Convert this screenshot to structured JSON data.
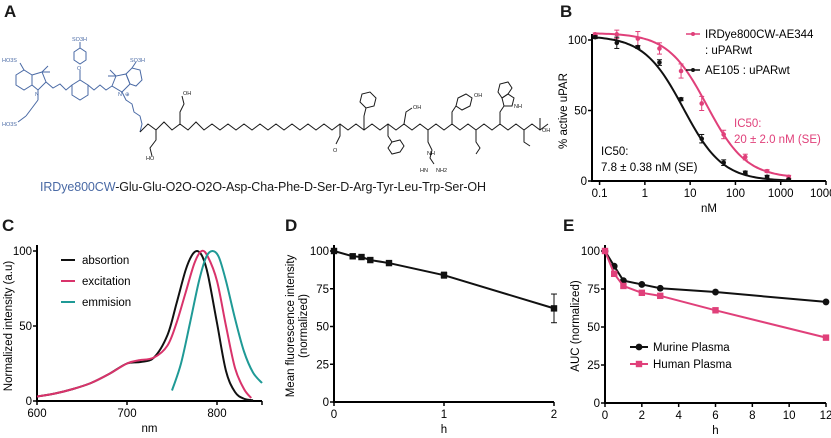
{
  "panels": {
    "A": {
      "letter": "A",
      "sequence_dye": "IRDye800CW",
      "sequence_rest": "-Glu-Glu-O2O-O2O-Asp-Cha-Phe-D-Ser-D-Arg-Tyr-Leu-Trp-Ser-OH",
      "structure_labels": [
        "SO3H",
        "HO3S",
        "SO3H",
        "HO3S",
        "O",
        "N",
        "N",
        "⊕",
        "OH",
        "HO",
        "O",
        "NH",
        "HN",
        "NH2",
        "NH",
        "OH",
        "OH",
        "OH"
      ],
      "colors": {
        "dye": "#4a6aa5",
        "peptide": "#1a1a1a"
      }
    },
    "B": {
      "letter": "B"
    },
    "C": {
      "letter": "C"
    },
    "D": {
      "letter": "D"
    },
    "E": {
      "letter": "E"
    }
  },
  "chart_data": [
    {
      "id": "B",
      "type": "line",
      "xscale": "log",
      "xlabel": "nM",
      "ylabel": "% active uPAR",
      "xticks": [
        0.1,
        1,
        10,
        100,
        1000,
        10000
      ],
      "xtick_labels": [
        "0.1",
        "1",
        "10",
        "100",
        "1000",
        "10000"
      ],
      "yticks": [
        0,
        50,
        100
      ],
      "ylim": [
        0,
        110
      ],
      "xlim": [
        0.068,
        10000
      ],
      "series": [
        {
          "name": "IRDye800CW-AE344",
          "name_line2": ": uPARwt",
          "color": "#e0407a",
          "x": [
            0.08,
            0.24,
            0.7,
            2.1,
            6.3,
            18,
            55,
            165,
            500,
            1500
          ],
          "y": [
            104,
            104,
            101,
            94,
            78,
            55,
            33,
            17,
            7,
            3
          ],
          "err": [
            1,
            3,
            5,
            4,
            5,
            5,
            3,
            2,
            1,
            1
          ],
          "ic50": 20,
          "annotation": [
            "IC50:",
            "20 ± 2.0 nM (SE)"
          ]
        },
        {
          "name": "AE105 : uPARwt",
          "color": "#111111",
          "x": [
            0.08,
            0.24,
            0.7,
            2.1,
            6.3,
            18,
            55,
            165,
            500,
            1500
          ],
          "y": [
            102,
            98,
            95,
            84,
            58,
            30,
            13,
            6,
            3,
            1
          ],
          "err": [
            1,
            4,
            1,
            2,
            1,
            3,
            2,
            1,
            1,
            0.5
          ],
          "ic50": 7.8,
          "annotation": [
            "IC50:",
            "7.8 ± 0.38 nM (SE)"
          ]
        }
      ]
    },
    {
      "id": "C",
      "type": "line",
      "xlabel": "nm",
      "ylabel": "Normalized intensity (a.u)",
      "xticks": [
        600,
        700,
        800
      ],
      "xlim": [
        600,
        850
      ],
      "yticks": [
        0,
        50,
        100
      ],
      "ylim": [
        0,
        100
      ],
      "legend": "top-left",
      "series": [
        {
          "name": "absortion",
          "color": "#111111",
          "x": [
            600,
            620,
            640,
            660,
            680,
            700,
            715,
            730,
            745,
            755,
            765,
            772,
            778,
            784,
            790,
            800,
            810,
            820,
            830,
            840
          ],
          "y": [
            3,
            5,
            8,
            12,
            18,
            25,
            26,
            29,
            44,
            65,
            87,
            97,
            100,
            96,
            84,
            52,
            20,
            6,
            1.5,
            0.5
          ]
        },
        {
          "name": "excitation",
          "color": "#d9336b",
          "x": [
            600,
            620,
            640,
            660,
            680,
            700,
            712,
            730,
            745,
            755,
            765,
            775,
            783,
            790,
            800,
            810,
            820,
            830,
            838
          ],
          "y": [
            3,
            5,
            8,
            12,
            18,
            25,
            27,
            29,
            37,
            52,
            72,
            92,
            100,
            96,
            80,
            50,
            22,
            8,
            2
          ]
        },
        {
          "name": "emmision",
          "color": "#1f9a96",
          "x": [
            750,
            760,
            770,
            780,
            788,
            795,
            802,
            810,
            820,
            830,
            840,
            850
          ],
          "y": [
            7,
            25,
            52,
            80,
            96,
            100,
            96,
            80,
            55,
            33,
            19,
            12
          ]
        }
      ]
    },
    {
      "id": "D",
      "type": "line",
      "xlabel": "h",
      "ylabel": "Mean fluorescence intensity (normalized)",
      "xticks": [
        0,
        1,
        2
      ],
      "xlim": [
        0,
        2
      ],
      "yticks": [
        0,
        25,
        50,
        75,
        100
      ],
      "ylim": [
        0,
        100
      ],
      "series": [
        {
          "name": "fluorescence",
          "color": "#111111",
          "marker": "square",
          "x": [
            0,
            0.17,
            0.25,
            0.33,
            0.5,
            1,
            2
          ],
          "y": [
            100,
            96.5,
            96,
            94,
            92,
            84,
            62
          ],
          "err": [
            0.5,
            0.5,
            0.5,
            0.5,
            0.5,
            2,
            9.5
          ]
        }
      ]
    },
    {
      "id": "E",
      "type": "line",
      "xlabel": "h",
      "ylabel": "AUC (normalized)",
      "xticks": [
        0,
        2,
        4,
        6,
        8,
        10,
        12
      ],
      "xlim": [
        0,
        12
      ],
      "yticks": [
        0,
        25,
        50,
        75,
        100
      ],
      "ylim": [
        0,
        100
      ],
      "legend": "center-left",
      "series": [
        {
          "name": "Murine Plasma",
          "color": "#111111",
          "marker": "circle",
          "x": [
            0,
            0.5,
            1,
            2,
            3,
            6,
            12
          ],
          "y": [
            100,
            90,
            80.5,
            78,
            75.5,
            73,
            66.5
          ]
        },
        {
          "name": "Human Plasma",
          "color": "#e0407a",
          "marker": "square",
          "x": [
            0,
            0.5,
            1,
            2,
            3,
            6,
            12
          ],
          "y": [
            100,
            85,
            77,
            72.5,
            70.5,
            61,
            43
          ]
        }
      ]
    }
  ]
}
